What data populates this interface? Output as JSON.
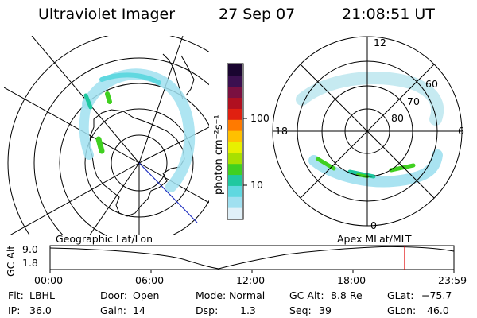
{
  "header": {
    "title": "Ultraviolet Imager",
    "date": "27 Sep 07",
    "time": "21:08:51 UT"
  },
  "colorbar": {
    "unit_label": "photon cm⁻²s⁻¹",
    "ticks": [
      "100",
      "10"
    ],
    "colors": [
      "#1a0530",
      "#3b1050",
      "#7a1040",
      "#b01020",
      "#e02010",
      "#ff7a00",
      "#ffc000",
      "#e8f000",
      "#a8e000",
      "#40d020",
      "#20c8a0",
      "#60d8e0",
      "#a0e0f0",
      "#e0f0f8"
    ]
  },
  "left_map": {
    "label": "Geographic Lat/Lon"
  },
  "right_map": {
    "label": "Apex  MLat/MLT",
    "hour_labels": {
      "top": "12",
      "bottom": "0",
      "left": "18",
      "right": "6"
    },
    "lat_labels": [
      "60",
      "70",
      "80"
    ]
  },
  "altitude_plot": {
    "ylabel": "GC Alt",
    "y_ticks": [
      "9.0",
      "1.8"
    ],
    "x_ticks": [
      "00:00",
      "06:00",
      "12:00",
      "18:00",
      "23:59"
    ],
    "current_marker_color": "#e00000"
  },
  "info": {
    "filter_label": "Flt:",
    "filter_value": "LBHL",
    "ip_label": "IP:",
    "ip_value": "36.0",
    "door_label": "Door:",
    "door_value": "Open",
    "gain_label": "Gain:",
    "gain_value": "14",
    "mode_label": "Mode:",
    "mode_value": "Normal",
    "dsp_label": "Dsp:",
    "dsp_value": "1.3",
    "gcalt_label": "GC Alt:",
    "gcalt_value": "8.8 Re",
    "seq_label": "Seq:",
    "seq_value": "39",
    "glat_label": "GLat:",
    "glat_value": "−75.7",
    "glon_label": "GLon:",
    "glon_value": "46.0"
  }
}
